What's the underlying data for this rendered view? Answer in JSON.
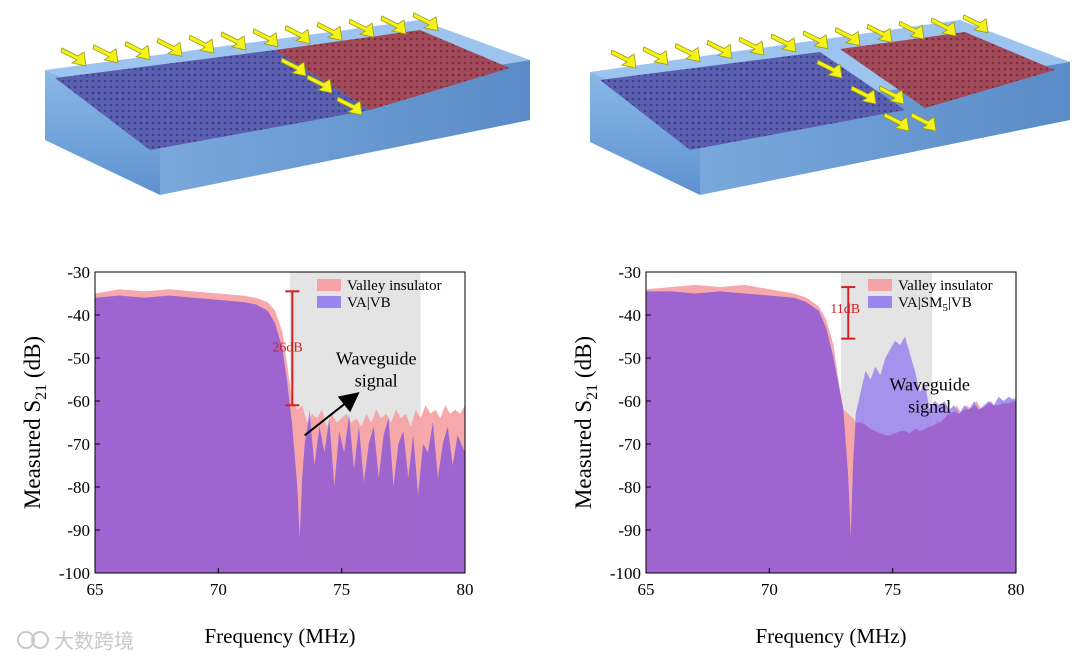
{
  "watermark": "大数跨境",
  "colors": {
    "valley": "#f5a3a7",
    "vavb": "#9a84ee",
    "overlap": "#9b59c8",
    "highlight": "#e4e4e4",
    "annotation": "#d42020",
    "arrow": "#f4f218"
  },
  "chart_data": [
    {
      "type": "area",
      "title": "",
      "xlabel": "Frequency (MHz)",
      "ylabel_main": "Measured S",
      "ylabel_sub": "21",
      "ylabel_unit": " (dB)",
      "xlim": [
        65,
        80
      ],
      "ylim": [
        -100,
        -30
      ],
      "xticks": [
        "65",
        "70",
        "75",
        "80"
      ],
      "yticks": [
        "-30",
        "-40",
        "-50",
        "-60",
        "-70",
        "-80",
        "-90",
        "-100"
      ],
      "highlight_band": [
        72.9,
        78.2
      ],
      "legend": [
        {
          "label": "Valley insulator",
          "series": "valley"
        },
        {
          "label": "VA|VB",
          "series": "vavb"
        }
      ],
      "series": [
        {
          "name": "Valley insulator",
          "x": [
            65,
            66,
            67,
            68,
            69,
            70,
            71,
            71.5,
            72,
            72.3,
            72.6,
            72.8,
            73.0,
            73.2,
            73.4,
            73.6,
            73.8,
            74.0,
            74.2,
            74.4,
            74.6,
            74.8,
            75.0,
            75.2,
            75.4,
            75.6,
            75.8,
            76.0,
            76.2,
            76.4,
            76.6,
            76.8,
            77.0,
            77.2,
            77.4,
            77.6,
            77.8,
            78.0,
            78.2,
            78.4,
            78.6,
            78.8,
            79.0,
            79.2,
            79.4,
            79.6,
            79.8,
            80
          ],
          "y": [
            -35,
            -34,
            -34.5,
            -34,
            -34.5,
            -35,
            -35.5,
            -36,
            -37,
            -39,
            -44,
            -52,
            -60,
            -62,
            -61,
            -65,
            -63,
            -64,
            -62,
            -66,
            -63,
            -65,
            -64,
            -63,
            -65,
            -64,
            -66,
            -63,
            -65,
            -62,
            -64,
            -63,
            -65,
            -62,
            -64,
            -63,
            -66,
            -62,
            -64,
            -61,
            -63,
            -62,
            -64,
            -61,
            -63,
            -62,
            -63,
            -61
          ]
        },
        {
          "name": "VA|VB",
          "x": [
            65,
            66,
            67,
            68,
            69,
            70,
            71,
            71.5,
            72,
            72.3,
            72.6,
            72.8,
            73.0,
            73.2,
            73.3,
            73.4,
            73.5,
            73.7,
            73.9,
            74.1,
            74.3,
            74.5,
            74.7,
            74.9,
            75.1,
            75.3,
            75.5,
            75.7,
            75.9,
            76.1,
            76.3,
            76.5,
            76.7,
            76.9,
            77.1,
            77.3,
            77.5,
            77.7,
            77.9,
            78.1,
            78.3,
            78.5,
            78.7,
            78.9,
            79.1,
            79.3,
            79.5,
            79.7,
            80
          ],
          "y": [
            -36,
            -35.5,
            -36,
            -35.5,
            -36,
            -36.5,
            -37,
            -37.5,
            -39,
            -42,
            -48,
            -56,
            -66,
            -80,
            -92,
            -78,
            -70,
            -62,
            -75,
            -66,
            -72,
            -64,
            -80,
            -67,
            -72,
            -63,
            -76,
            -66,
            -79,
            -70,
            -66,
            -78,
            -68,
            -64,
            -80,
            -70,
            -67,
            -78,
            -68,
            -82,
            -70,
            -72,
            -65,
            -78,
            -70,
            -66,
            -75,
            -68,
            -72
          ]
        }
      ],
      "annotations": {
        "gap": "26dB",
        "gap_top": -34.5,
        "gap_bottom": -61,
        "gap_x": 73.0,
        "signal_line1": "Waveguide",
        "signal_line2": "signal"
      }
    },
    {
      "type": "area",
      "title": "",
      "xlabel": "Frequency (MHz)",
      "ylabel_main": "Measured S",
      "ylabel_sub": "21",
      "ylabel_unit": " (dB)",
      "xlim": [
        65,
        80
      ],
      "ylim": [
        -100,
        -30
      ],
      "xticks": [
        "65",
        "70",
        "75",
        "80"
      ],
      "yticks": [
        "-30",
        "-40",
        "-50",
        "-60",
        "-70",
        "-80",
        "-90",
        "-100"
      ],
      "highlight_band": [
        72.9,
        76.6
      ],
      "legend": [
        {
          "label": "Valley insulator",
          "series": "valley"
        },
        {
          "label_main": "VA|SM",
          "label_sub": "5",
          "label_tail": "|VB",
          "series": "vavb"
        }
      ],
      "series": [
        {
          "name": "Valley insulator",
          "x": [
            65,
            66,
            67,
            68,
            69,
            70,
            71,
            71.5,
            72,
            72.3,
            72.6,
            72.8,
            73.0,
            73.2,
            73.4,
            73.6,
            73.8,
            74.0,
            74.2,
            74.4,
            74.6,
            74.8,
            75.0,
            75.2,
            75.4,
            75.6,
            75.8,
            76.0,
            76.2,
            76.4,
            76.6,
            76.8,
            77.0,
            77.2,
            77.4,
            77.6,
            77.8,
            78.0,
            78.2,
            78.4,
            78.6,
            78.8,
            79.0,
            79.2,
            79.4,
            79.6,
            79.8,
            80
          ],
          "y": [
            -34,
            -33.5,
            -33,
            -33.5,
            -33,
            -34,
            -35,
            -36,
            -38,
            -41,
            -47,
            -55,
            -62,
            -63,
            -64,
            -66,
            -64,
            -67,
            -66,
            -68,
            -67,
            -69,
            -67,
            -68,
            -66,
            -68,
            -67,
            -66,
            -68,
            -65,
            -67,
            -64,
            -66,
            -62,
            -64,
            -61,
            -63,
            -61,
            -62,
            -60,
            -62,
            -61,
            -60,
            -62,
            -60,
            -61,
            -60,
            -59
          ]
        },
        {
          "name": "VA|SM5|VB",
          "x": [
            65,
            66,
            67,
            68,
            69,
            70,
            71,
            71.5,
            72,
            72.3,
            72.6,
            72.8,
            73.0,
            73.2,
            73.3,
            73.4,
            73.5,
            73.7,
            73.9,
            74.1,
            74.3,
            74.5,
            74.7,
            74.9,
            75.1,
            75.3,
            75.5,
            75.7,
            75.9,
            76.1,
            76.3,
            76.5,
            76.7,
            76.9,
            77.1,
            77.3,
            77.5,
            77.7,
            77.9,
            78.1,
            78.3,
            78.5,
            78.7,
            78.9,
            79.1,
            79.3,
            79.5,
            79.7,
            80
          ],
          "y": [
            -34.5,
            -34.5,
            -35,
            -34.5,
            -35,
            -35.5,
            -36,
            -37,
            -39,
            -43,
            -50,
            -56,
            -62,
            -78,
            -92,
            -74,
            -63,
            -58,
            -53,
            -55,
            -52,
            -54,
            -50,
            -48,
            -46,
            -47,
            -45,
            -49,
            -53,
            -58,
            -56,
            -62,
            -60,
            -61,
            -60,
            -62,
            -61,
            -63,
            -61,
            -62,
            -60,
            -62,
            -61,
            -60,
            -61,
            -59,
            -60,
            -59,
            -60
          ]
        }
      ],
      "annotations": {
        "gap": "11dB",
        "gap_top": -33.5,
        "gap_bottom": -45.5,
        "gap_x": 73.2,
        "signal_line1": "Waveguide",
        "signal_line2": "signal"
      }
    }
  ]
}
